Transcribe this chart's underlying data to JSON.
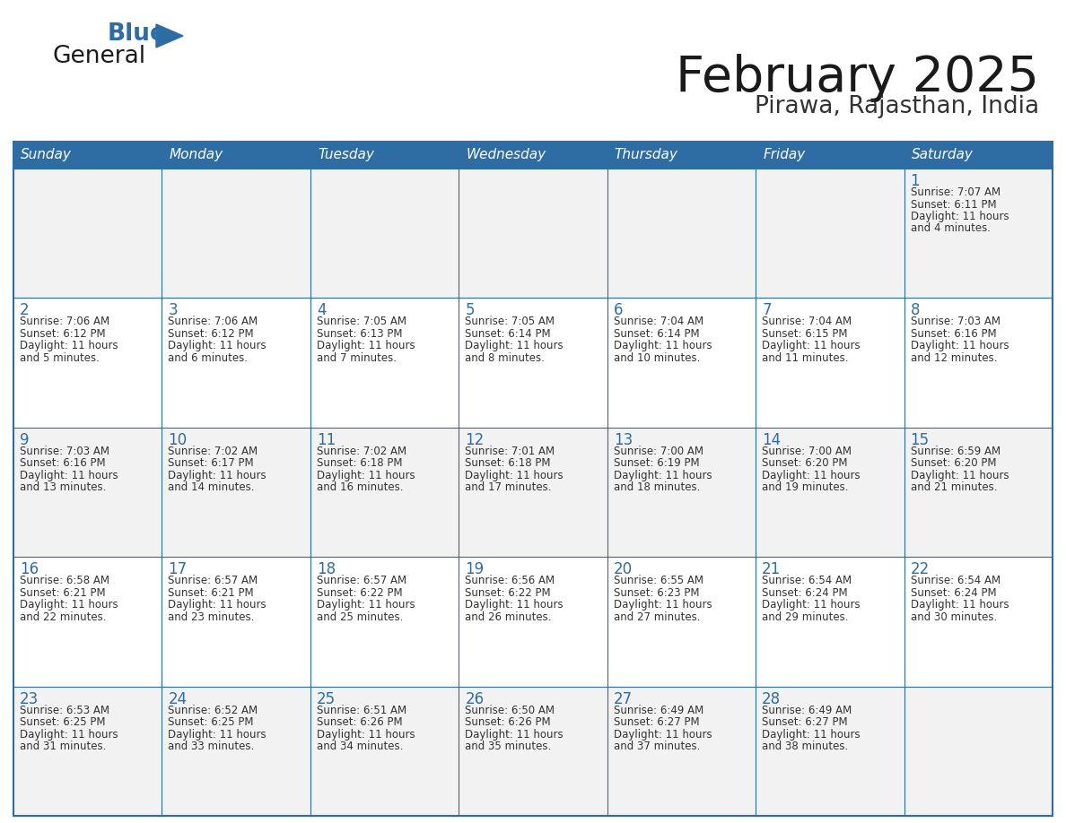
{
  "title": "February 2025",
  "subtitle": "Pirawa, Rajasthan, India",
  "header_bg": "#2E6DA4",
  "header_text_color": "#FFFFFF",
  "days_of_week": [
    "Sunday",
    "Monday",
    "Tuesday",
    "Wednesday",
    "Thursday",
    "Friday",
    "Saturday"
  ],
  "cell_bg_light": "#F2F2F2",
  "cell_bg_white": "#FFFFFF",
  "border_color": "#2E6DA4",
  "title_color": "#1a1a1a",
  "subtitle_color": "#333333",
  "day_num_color": "#2E6DA4",
  "cell_text_color": "#333333",
  "logo_general_color": "#1a1a1a",
  "logo_blue_color": "#2E6DA4",
  "calendar": [
    [
      null,
      null,
      null,
      null,
      null,
      null,
      {
        "day": 1,
        "sunrise": "7:07 AM",
        "sunset": "6:11 PM",
        "daylight_line1": "Daylight: 11 hours",
        "daylight_line2": "and 4 minutes."
      }
    ],
    [
      {
        "day": 2,
        "sunrise": "7:06 AM",
        "sunset": "6:12 PM",
        "daylight_line1": "Daylight: 11 hours",
        "daylight_line2": "and 5 minutes."
      },
      {
        "day": 3,
        "sunrise": "7:06 AM",
        "sunset": "6:12 PM",
        "daylight_line1": "Daylight: 11 hours",
        "daylight_line2": "and 6 minutes."
      },
      {
        "day": 4,
        "sunrise": "7:05 AM",
        "sunset": "6:13 PM",
        "daylight_line1": "Daylight: 11 hours",
        "daylight_line2": "and 7 minutes."
      },
      {
        "day": 5,
        "sunrise": "7:05 AM",
        "sunset": "6:14 PM",
        "daylight_line1": "Daylight: 11 hours",
        "daylight_line2": "and 8 minutes."
      },
      {
        "day": 6,
        "sunrise": "7:04 AM",
        "sunset": "6:14 PM",
        "daylight_line1": "Daylight: 11 hours",
        "daylight_line2": "and 10 minutes."
      },
      {
        "day": 7,
        "sunrise": "7:04 AM",
        "sunset": "6:15 PM",
        "daylight_line1": "Daylight: 11 hours",
        "daylight_line2": "and 11 minutes."
      },
      {
        "day": 8,
        "sunrise": "7:03 AM",
        "sunset": "6:16 PM",
        "daylight_line1": "Daylight: 11 hours",
        "daylight_line2": "and 12 minutes."
      }
    ],
    [
      {
        "day": 9,
        "sunrise": "7:03 AM",
        "sunset": "6:16 PM",
        "daylight_line1": "Daylight: 11 hours",
        "daylight_line2": "and 13 minutes."
      },
      {
        "day": 10,
        "sunrise": "7:02 AM",
        "sunset": "6:17 PM",
        "daylight_line1": "Daylight: 11 hours",
        "daylight_line2": "and 14 minutes."
      },
      {
        "day": 11,
        "sunrise": "7:02 AM",
        "sunset": "6:18 PM",
        "daylight_line1": "Daylight: 11 hours",
        "daylight_line2": "and 16 minutes."
      },
      {
        "day": 12,
        "sunrise": "7:01 AM",
        "sunset": "6:18 PM",
        "daylight_line1": "Daylight: 11 hours",
        "daylight_line2": "and 17 minutes."
      },
      {
        "day": 13,
        "sunrise": "7:00 AM",
        "sunset": "6:19 PM",
        "daylight_line1": "Daylight: 11 hours",
        "daylight_line2": "and 18 minutes."
      },
      {
        "day": 14,
        "sunrise": "7:00 AM",
        "sunset": "6:20 PM",
        "daylight_line1": "Daylight: 11 hours",
        "daylight_line2": "and 19 minutes."
      },
      {
        "day": 15,
        "sunrise": "6:59 AM",
        "sunset": "6:20 PM",
        "daylight_line1": "Daylight: 11 hours",
        "daylight_line2": "and 21 minutes."
      }
    ],
    [
      {
        "day": 16,
        "sunrise": "6:58 AM",
        "sunset": "6:21 PM",
        "daylight_line1": "Daylight: 11 hours",
        "daylight_line2": "and 22 minutes."
      },
      {
        "day": 17,
        "sunrise": "6:57 AM",
        "sunset": "6:21 PM",
        "daylight_line1": "Daylight: 11 hours",
        "daylight_line2": "and 23 minutes."
      },
      {
        "day": 18,
        "sunrise": "6:57 AM",
        "sunset": "6:22 PM",
        "daylight_line1": "Daylight: 11 hours",
        "daylight_line2": "and 25 minutes."
      },
      {
        "day": 19,
        "sunrise": "6:56 AM",
        "sunset": "6:22 PM",
        "daylight_line1": "Daylight: 11 hours",
        "daylight_line2": "and 26 minutes."
      },
      {
        "day": 20,
        "sunrise": "6:55 AM",
        "sunset": "6:23 PM",
        "daylight_line1": "Daylight: 11 hours",
        "daylight_line2": "and 27 minutes."
      },
      {
        "day": 21,
        "sunrise": "6:54 AM",
        "sunset": "6:24 PM",
        "daylight_line1": "Daylight: 11 hours",
        "daylight_line2": "and 29 minutes."
      },
      {
        "day": 22,
        "sunrise": "6:54 AM",
        "sunset": "6:24 PM",
        "daylight_line1": "Daylight: 11 hours",
        "daylight_line2": "and 30 minutes."
      }
    ],
    [
      {
        "day": 23,
        "sunrise": "6:53 AM",
        "sunset": "6:25 PM",
        "daylight_line1": "Daylight: 11 hours",
        "daylight_line2": "and 31 minutes."
      },
      {
        "day": 24,
        "sunrise": "6:52 AM",
        "sunset": "6:25 PM",
        "daylight_line1": "Daylight: 11 hours",
        "daylight_line2": "and 33 minutes."
      },
      {
        "day": 25,
        "sunrise": "6:51 AM",
        "sunset": "6:26 PM",
        "daylight_line1": "Daylight: 11 hours",
        "daylight_line2": "and 34 minutes."
      },
      {
        "day": 26,
        "sunrise": "6:50 AM",
        "sunset": "6:26 PM",
        "daylight_line1": "Daylight: 11 hours",
        "daylight_line2": "and 35 minutes."
      },
      {
        "day": 27,
        "sunrise": "6:49 AM",
        "sunset": "6:27 PM",
        "daylight_line1": "Daylight: 11 hours",
        "daylight_line2": "and 37 minutes."
      },
      {
        "day": 28,
        "sunrise": "6:49 AM",
        "sunset": "6:27 PM",
        "daylight_line1": "Daylight: 11 hours",
        "daylight_line2": "and 38 minutes."
      },
      null
    ]
  ]
}
